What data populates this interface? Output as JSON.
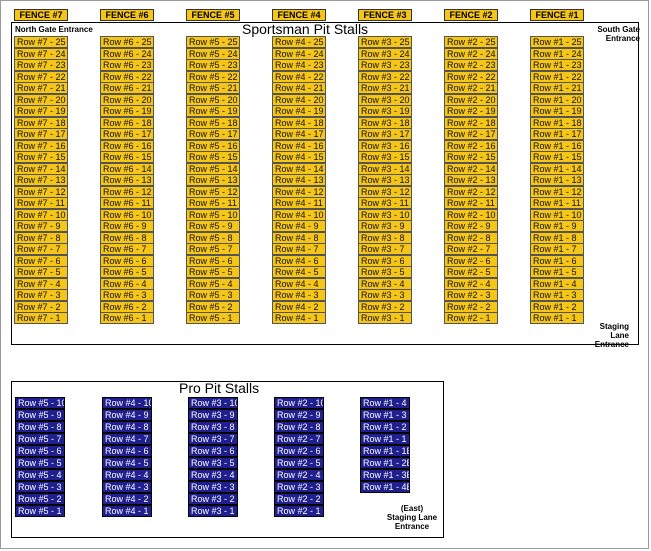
{
  "fences": [
    "FENCE #7",
    "FENCE #6",
    "FENCE #5",
    "FENCE #4",
    "FENCE #3",
    "FENCE #2",
    "FENCE #1"
  ],
  "sportsman": {
    "title": "Sportsman Pit Stalls",
    "north_gate": "North Gate Entrance",
    "south_gate": "South Gate Entrance",
    "staging_lane": "Staging Lane Entrance",
    "columns": [
      [
        "Row #7 - 25",
        "Row #7 - 24",
        "Row #7 - 23",
        "Row #7 - 22",
        "Row #7 - 21",
        "Row #7 - 20",
        "Row #7 - 19",
        "Row #7 - 18",
        "Row #7 - 17",
        "Row #7 - 16",
        "Row #7 - 15",
        "Row #7 - 14",
        "Row #7 - 13",
        "Row #7 - 12",
        "Row #7 - 11",
        "Row #7 - 10",
        "Row #7 - 9",
        "Row #7 - 8",
        "Row #7 - 7",
        "Row #7 - 6",
        "Row #7 - 5",
        "Row #7 - 4",
        "Row #7 - 3",
        "Row #7 - 2",
        "Row #7 - 1"
      ],
      [
        "Row #6 - 25",
        "Row #6 - 24",
        "Row #6 - 23",
        "Row #6 - 22",
        "Row #6 - 21",
        "Row #6 - 20",
        "Row #6 - 19",
        "Row #6 - 18",
        "Row #6 - 17",
        "Row #6 - 16",
        "Row #6 - 15",
        "Row #6 - 14",
        "Row #6 - 13",
        "Row #6 - 12",
        "Row #6 - 11",
        "Row #6 - 10",
        "Row #6 - 9",
        "Row #6 - 8",
        "Row #6 - 7",
        "Row #6 - 6",
        "Row #6 - 5",
        "Row #6 - 4",
        "Row #6 - 3",
        "Row #6 - 2",
        "Row #6 - 1"
      ],
      [
        "Row #5 - 25",
        "Row #5 - 24",
        "Row #5 - 23",
        "Row #5 - 22",
        "Row #5 - 21",
        "Row #5 - 20",
        "Row #5 - 19",
        "Row #5 - 18",
        "Row #5 - 17",
        "Row #5 - 16",
        "Row #5 - 15",
        "Row #5 - 14",
        "Row #5 - 13",
        "Row #5 - 12",
        "Row #5 - 11",
        "Row #5 - 10",
        "Row #5 - 9",
        "Row #5 - 8",
        "Row #5 - 7",
        "Row #5 - 6",
        "Row #5 - 5",
        "Row #5 - 4",
        "Row #5 - 3",
        "Row #5 - 2",
        "Row #5 - 1"
      ],
      [
        "Row #4 - 25",
        "Row #4 - 24",
        "Row #4 - 23",
        "Row #4 - 22",
        "Row #4 - 21",
        "Row #4 - 20",
        "Row #4 - 19",
        "Row #4 - 18",
        "Row #4 - 17",
        "Row #4 - 16",
        "Row #4 - 15",
        "Row #4 - 14",
        "Row #4 - 13",
        "Row #4 - 12",
        "Row #4 - 11",
        "Row #4 - 10",
        "Row #4 - 9",
        "Row #4 - 8",
        "Row #4 - 7",
        "Row #4 - 6",
        "Row #4 - 5",
        "Row #4 - 4",
        "Row #4 - 3",
        "Row #4 - 2",
        "Row #4 - 1"
      ],
      [
        "Row #3 - 25",
        "Row #3 - 24",
        "Row #3 - 23",
        "Row #3 - 22",
        "Row #3 - 21",
        "Row #3 - 20",
        "Row #3 - 19",
        "Row #3 - 18",
        "Row #3 - 17",
        "Row #3 - 16",
        "Row #3 - 15",
        "Row #3 - 14",
        "Row #3 - 13",
        "Row #3 - 12",
        "Row #3 - 11",
        "Row #3 - 10",
        "Row #3 - 9",
        "Row #3 - 8",
        "Row #3 - 7",
        "Row #3 - 6",
        "Row #3 - 5",
        "Row #3 - 4",
        "Row #3 - 3",
        "Row #3 - 2",
        "Row #3 - 1"
      ],
      [
        "Row #2 - 25",
        "Row #2 - 24",
        "Row #2 - 23",
        "Row #2 - 22",
        "Row #2 - 21",
        "Row #2 - 20",
        "Row #2 - 19",
        "Row #2 - 18",
        "Row #2 - 17",
        "Row #2 - 16",
        "Row #2 - 15",
        "Row #2 - 14",
        "Row #2 - 13",
        "Row #2 - 12",
        "Row #2 - 11",
        "Row #2 - 10",
        "Row #2 - 9",
        "Row #2 - 8",
        "Row #2 - 7",
        "Row #2 - 6",
        "Row #2 - 5",
        "Row #2 - 4",
        "Row #2 - 3",
        "Row #2 - 2",
        "Row #2 - 1"
      ],
      [
        "Row #1 - 25",
        "Row #1 - 24",
        "Row #1 - 23",
        "Row #1 - 22",
        "Row #1 - 21",
        "Row #1 - 20",
        "Row #1 - 19",
        "Row #1 - 18",
        "Row #1 - 17",
        "Row #1 - 16",
        "Row #1 - 15",
        "Row #1 - 14",
        "Row #1 - 13",
        "Row #1 - 12",
        "Row #1 - 11",
        "Row #1 - 10",
        "Row #1 - 9",
        "Row #1 - 8",
        "Row #1 - 7",
        "Row #1 - 6",
        "Row #1 - 5",
        "Row #1 - 4",
        "Row #1 - 3",
        "Row #1 - 2",
        "Row #1 - 1"
      ]
    ]
  },
  "pro": {
    "title": "Pro Pit Stalls",
    "staging_lane": "(East) Staging Lane Entrance",
    "columns": [
      [
        "Row #5 - 10",
        "Row #5 - 9",
        "Row #5 - 8",
        "Row #5 - 7",
        "Row #5 - 6",
        "Row #5 - 5",
        "Row #5 - 4",
        "Row #5 - 3",
        "Row #5 - 2",
        "Row #5 - 1"
      ],
      [
        "Row #4 - 10",
        "Row #4 - 9",
        "Row #4 - 8",
        "Row #4 - 7",
        "Row #4 - 6",
        "Row #4 - 5",
        "Row #4 - 4",
        "Row #4 - 3",
        "Row #4 - 2",
        "Row #4 - 1"
      ],
      [
        "Row #3 - 10",
        "Row #3 - 9",
        "Row #3 - 8",
        "Row #3 - 7",
        "Row #3 - 6",
        "Row #3 - 5",
        "Row #3 - 4",
        "Row #3 - 3",
        "Row #3 - 2",
        "Row #3 - 1"
      ],
      [
        "Row #2 - 10",
        "Row #2 - 9",
        "Row #2 - 8",
        "Row #2 - 7",
        "Row #2 - 6",
        "Row #2 - 5",
        "Row #2 - 4",
        "Row #2 - 3",
        "Row #2 - 2",
        "Row #2 - 1"
      ],
      [
        "Row #1 - 4",
        "Row #1 - 3",
        "Row #1 - 2",
        "Row #1 - 1",
        "Row #1 - 1B",
        "Row #1 - 2B",
        "Row #1 - 3B",
        "Row #1 - 4B"
      ]
    ]
  },
  "colors": {
    "sportsman_stall": "#f5c518",
    "pro_stall": "#1f1f8f"
  }
}
